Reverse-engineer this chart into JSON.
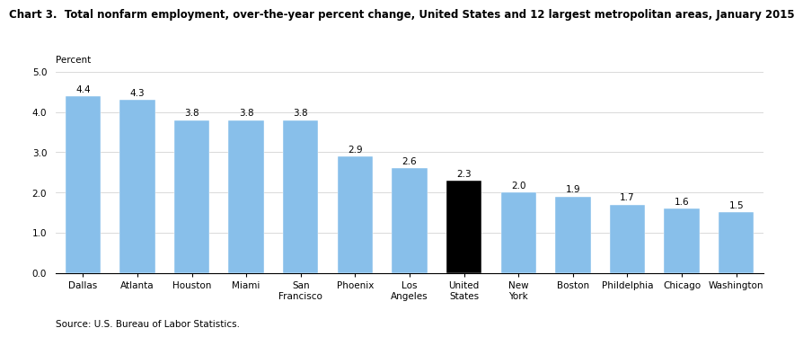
{
  "title": "Chart 3.  Total nonfarm employment, over-the-year percent change, United States and 12 largest metropolitan areas, January 2015",
  "percent_label": "Percent",
  "source": "Source: U.S. Bureau of Labor Statistics.",
  "categories": [
    "Dallas",
    "Atlanta",
    "Houston",
    "Miami",
    "San\nFrancisco",
    "Phoenix",
    "Los\nAngeles",
    "United\nStates",
    "New\nYork",
    "Boston",
    "Phildelphia",
    "Chicago",
    "Washington"
  ],
  "values": [
    4.4,
    4.3,
    3.8,
    3.8,
    3.8,
    2.9,
    2.6,
    2.3,
    2.0,
    1.9,
    1.7,
    1.6,
    1.5
  ],
  "bar_colors": [
    "#88BFEA",
    "#88BFEA",
    "#88BFEA",
    "#88BFEA",
    "#88BFEA",
    "#88BFEA",
    "#88BFEA",
    "#000000",
    "#88BFEA",
    "#88BFEA",
    "#88BFEA",
    "#88BFEA",
    "#88BFEA"
  ],
  "ylim": [
    0.0,
    5.0
  ],
  "yticks": [
    0.0,
    1.0,
    2.0,
    3.0,
    4.0,
    5.0
  ],
  "label_fontsize": 7.5,
  "tick_fontsize": 7.5,
  "title_fontsize": 8.5,
  "source_fontsize": 7.5
}
